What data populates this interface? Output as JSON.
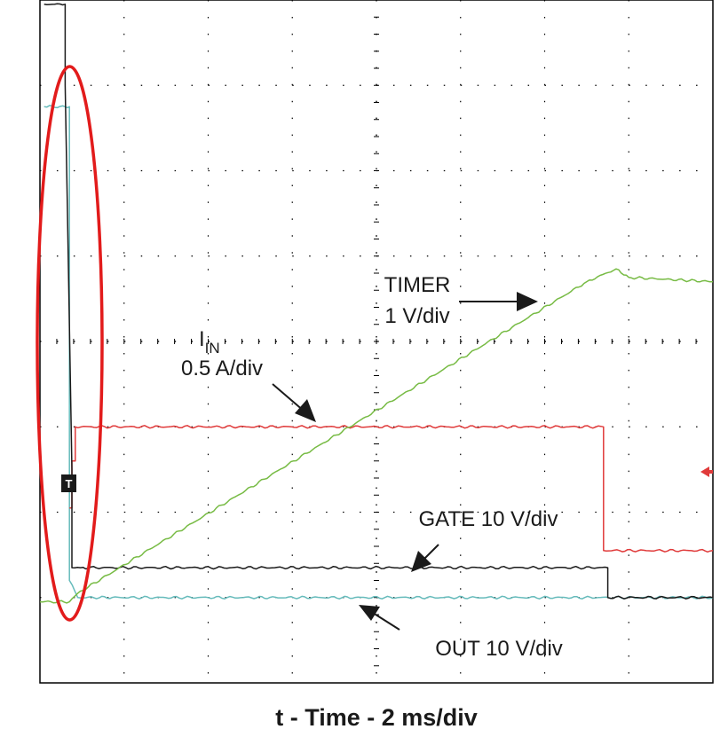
{
  "chart_data": {
    "type": "line",
    "xlabel": "t - Time - 2 ms/div",
    "x_divisions": 8,
    "y_divisions": 8,
    "grid": true,
    "xlim": [
      0,
      8
    ],
    "ylim": [
      0,
      8
    ],
    "series": [
      {
        "name": "TIMER",
        "scale_label": "1 V/div",
        "color": "#77bb44",
        "x": [
          0,
          0.35,
          0.45,
          6.5,
          6.85,
          7.0,
          8.0
        ],
        "y": [
          0.95,
          0.95,
          1.05,
          4.7,
          4.85,
          4.75,
          4.7
        ]
      },
      {
        "name": "I",
        "name_sub": "IN",
        "scale_label": "0.5 A/div",
        "color": "#e03a3a",
        "x": [
          0.35,
          0.38,
          0.38,
          0.42,
          0.42,
          6.7,
          6.7,
          8.0
        ],
        "y": [
          2.05,
          2.05,
          2.6,
          2.6,
          3.0,
          3.0,
          1.55,
          1.55
        ]
      },
      {
        "name": "GATE",
        "scale_label": "10 V/div",
        "color": "#1a1a1a",
        "x": [
          0.05,
          0.3,
          0.3,
          0.38,
          0.38,
          0.48,
          0.48,
          6.75,
          6.75,
          8.0
        ],
        "y": [
          7.95,
          7.95,
          7.0,
          2.5,
          1.35,
          1.35,
          1.35,
          1.35,
          1.0,
          1.0
        ]
      },
      {
        "name": "OUT",
        "scale_label": "10 V/div",
        "color": "#66bbbb",
        "x": [
          0.05,
          0.3,
          0.35,
          0.35,
          0.45,
          8.0
        ],
        "y": [
          6.75,
          6.75,
          6.75,
          1.2,
          1.0,
          1.0
        ]
      }
    ],
    "annotations": [
      "TIMER",
      "1 V/div",
      "I",
      "IN",
      "0.5 A/div",
      "GATE 10 V/div",
      "OUT 10 V/div"
    ],
    "markers": {
      "trigger_label": "T"
    }
  }
}
